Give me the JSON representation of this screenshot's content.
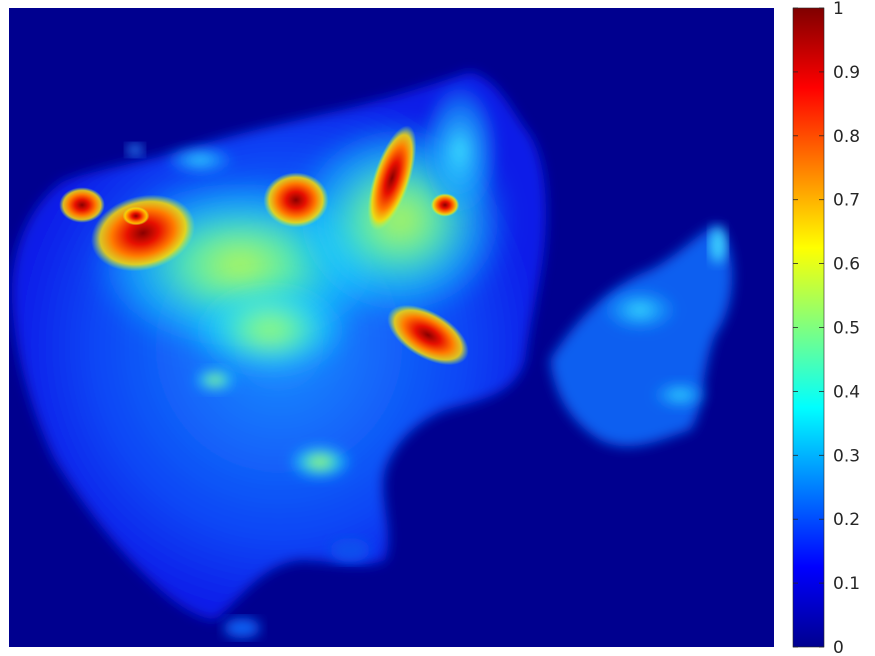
{
  "chart_data": {
    "type": "heatmap",
    "title": "",
    "xlabel": "",
    "ylabel": "",
    "colormap": "jet",
    "clim": [
      0,
      1
    ],
    "colorbar": {
      "location": "right",
      "ticks": [
        0,
        0.1,
        0.2,
        0.3,
        0.4,
        0.5,
        0.6,
        0.7,
        0.8,
        0.9,
        1
      ],
      "tick_labels": [
        "0",
        "0.1",
        "0.2",
        "0.3",
        "0.4",
        "0.5",
        "0.6",
        "0.7",
        "0.8",
        "0.9",
        "1"
      ]
    },
    "background_value": 0,
    "hotspots": [
      {
        "id": "hotspot-1",
        "value": 0.85
      },
      {
        "id": "hotspot-2",
        "value": 0.95
      },
      {
        "id": "hotspot-3",
        "value": 0.82
      },
      {
        "id": "hotspot-4",
        "value": 0.92
      },
      {
        "id": "hotspot-5",
        "value": 0.9
      },
      {
        "id": "hotspot-6",
        "value": 0.88
      },
      {
        "id": "hotspot-7",
        "value": 0.97
      }
    ]
  }
}
